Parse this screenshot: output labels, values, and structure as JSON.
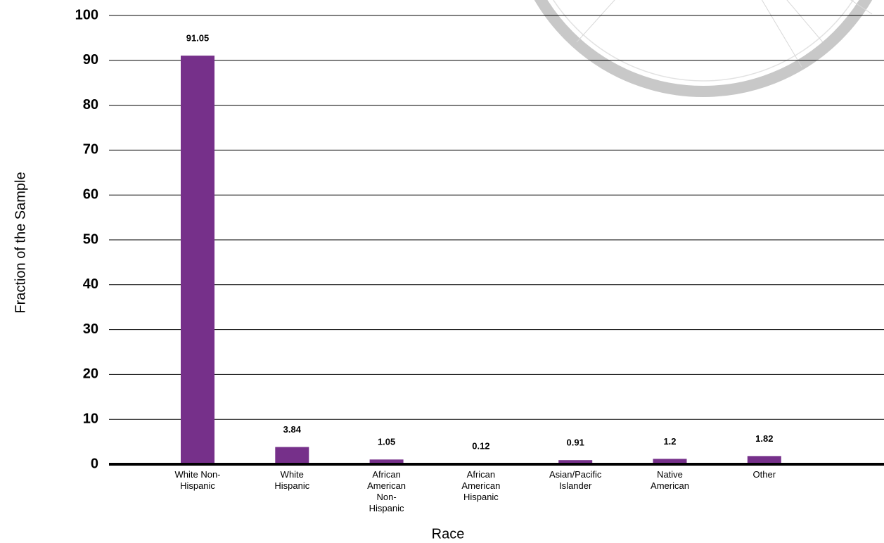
{
  "chart_data": {
    "type": "bar",
    "y_label": "Fraction of the Sample",
    "x_label": "Race",
    "categories": [
      "White Non-Hispanic",
      "White Hispanic",
      "African American Non-Hispanic",
      "African American Hispanic",
      "Asian/Pacific Islander",
      "Native American",
      "Other"
    ],
    "values": [
      91.05,
      3.84,
      1.05,
      0.12,
      0.91,
      1.2,
      1.82
    ],
    "color": "#76308a",
    "ylim": [
      0,
      100
    ],
    "yticks": [
      0,
      10,
      20,
      30,
      40,
      50,
      60,
      70,
      80,
      90,
      100
    ],
    "grid": true
  }
}
